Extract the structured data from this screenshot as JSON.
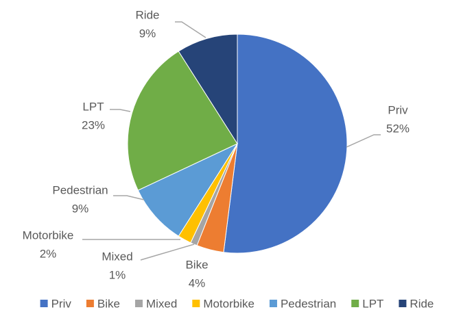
{
  "chart_data": {
    "type": "pie",
    "categories": [
      "Priv",
      "Bike",
      "Mixed",
      "Motorbike",
      "Pedestrian",
      "LPT",
      "Ride"
    ],
    "values": [
      52,
      4,
      1,
      2,
      9,
      23,
      9
    ],
    "value_labels": [
      "52%",
      "4%",
      "1%",
      "2%",
      "9%",
      "23%",
      "9%"
    ],
    "colors": [
      "#4472c4",
      "#ed7d31",
      "#a5a5a5",
      "#ffc000",
      "#5b9bd5",
      "#70ad47",
      "#264478"
    ],
    "legend": "bottom"
  }
}
